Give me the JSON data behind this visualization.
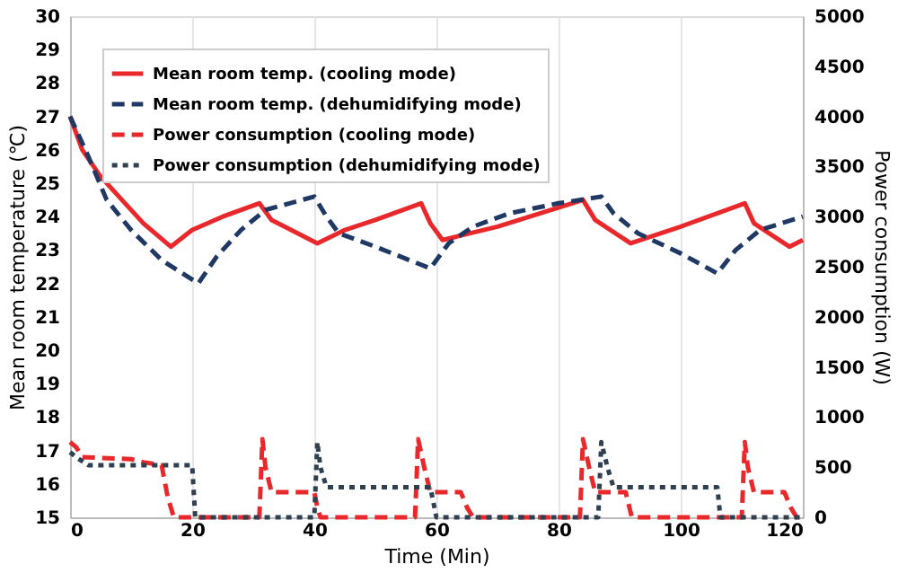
{
  "chart_data": {
    "type": "line",
    "xlabel": "Time (Min)",
    "ylabel": "Mean room temperature (℃)",
    "y2label": "Power consumption (W)",
    "xlim": [
      0,
      120
    ],
    "xticks": [
      0,
      20,
      40,
      60,
      80,
      100,
      120
    ],
    "ylim": [
      15,
      30
    ],
    "yticks": [
      15,
      16,
      17,
      18,
      19,
      20,
      21,
      22,
      23,
      24,
      25,
      26,
      27,
      28,
      29,
      30
    ],
    "y2lim": [
      0,
      5000
    ],
    "y2ticks": [
      0,
      500,
      1000,
      1500,
      2000,
      2500,
      3000,
      3500,
      4000,
      4500,
      5000
    ],
    "grid": "x",
    "legend": "top left",
    "marker": "none",
    "series": [
      {
        "name": "Mean room temp. (cooling mode)",
        "color": "#e8282b",
        "line_style": "solid",
        "x": [
          0,
          2,
          5,
          8,
          12,
          16.5,
          20,
          25,
          31,
          33,
          40.5,
          45,
          50,
          57.5,
          59,
          61,
          70,
          84,
          86,
          91.8,
          100,
          110.5,
          112,
          117.8,
          120
        ],
        "values": [
          27,
          26,
          25.2,
          24.6,
          23.8,
          23.1,
          23.6,
          24,
          24.4,
          23.9,
          23.2,
          23.6,
          23.9,
          24.4,
          23.8,
          23.3,
          23.7,
          24.5,
          23.9,
          23.2,
          23.7,
          24.4,
          23.8,
          23.1,
          23.3
        ]
      },
      {
        "name": "Mean room temp. (dehumidifying mode)",
        "color": "#1f3864",
        "line_style": "dashed",
        "x": [
          0,
          3,
          6,
          10,
          15,
          21,
          24,
          28,
          32,
          40,
          42,
          44,
          50,
          59,
          62,
          66,
          72,
          80,
          87,
          89,
          93,
          100,
          106,
          109,
          113,
          120
        ],
        "values": [
          27,
          25.8,
          24.5,
          23.6,
          22.7,
          22,
          22.8,
          23.6,
          24.2,
          24.6,
          24,
          23.5,
          23.1,
          22.45,
          23.2,
          23.7,
          24.1,
          24.4,
          24.6,
          24.1,
          23.5,
          22.9,
          22.3,
          23,
          23.6,
          24
        ]
      },
      {
        "name": "Power consumption (cooling mode)",
        "color": "#e8282b",
        "line_style": "dashed",
        "axis": "y2",
        "x": [
          0,
          1,
          2,
          10,
          12,
          15,
          16,
          17,
          31,
          31.5,
          32,
          33,
          40,
          40.5,
          41,
          56.5,
          57,
          58,
          59,
          64,
          65,
          66,
          83.5,
          84,
          85,
          86,
          91,
          92,
          110,
          110.5,
          111,
          112,
          117,
          118,
          119,
          120
        ],
        "values": [
          750,
          700,
          600,
          580,
          550,
          520,
          200,
          0,
          0,
          780,
          500,
          250,
          250,
          100,
          0,
          0,
          780,
          500,
          250,
          250,
          100,
          0,
          0,
          780,
          500,
          250,
          250,
          0,
          0,
          750,
          500,
          250,
          250,
          100,
          0,
          0
        ]
      },
      {
        "name": "Power consumption (dehumidifying mode)",
        "color": "#2f4050",
        "line_style": "dotted",
        "axis": "y2",
        "x": [
          0,
          1,
          3,
          20,
          20.5,
          40,
          40.5,
          41,
          42,
          59,
          60,
          86.5,
          87,
          88,
          89,
          106,
          106.5,
          120
        ],
        "values": [
          650,
          600,
          520,
          520,
          0,
          0,
          750,
          500,
          300,
          300,
          0,
          0,
          750,
          500,
          300,
          300,
          0,
          0
        ]
      }
    ]
  }
}
